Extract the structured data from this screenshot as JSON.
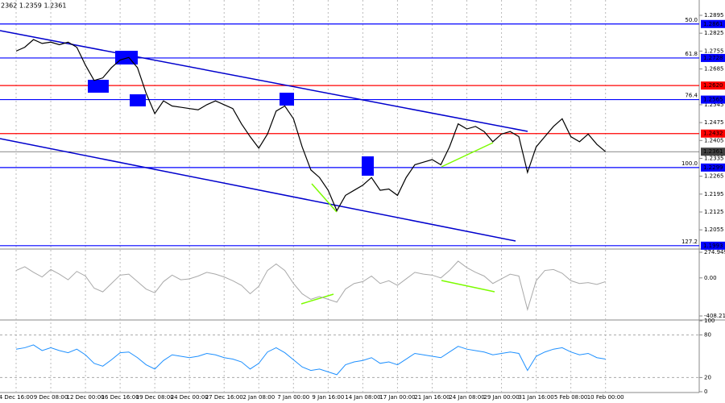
{
  "chart_data": [
    {
      "type": "line",
      "header": "2362 1.2359 1.2361",
      "categories": [
        "4 Dec 16:00",
        null,
        null,
        null,
        "9 Dec 08:00",
        null,
        null,
        null,
        "12 Dec 00:00",
        null,
        null,
        null,
        "16 Dec 16:00",
        null,
        null,
        null,
        "19 Dec 08:00",
        null,
        null,
        null,
        "24 Dec 00:00",
        null,
        null,
        null,
        "27 Dec 16:00",
        null,
        null,
        null,
        "2 Jan 08:00",
        null,
        null,
        null,
        "7 Jan 00:00",
        null,
        null,
        null,
        "9 Jan 16:00",
        null,
        null,
        null,
        "14 Jan 08:00",
        null,
        null,
        null,
        "17 Jan 00:00",
        null,
        null,
        null,
        "21 Jan 16:00",
        null,
        null,
        null,
        "24 Jan 08:00",
        null,
        null,
        null,
        "29 Jan 00:00",
        null,
        null,
        null,
        "31 Jan 16:00",
        null,
        null,
        null,
        "5 Feb 08:00",
        null,
        null,
        null,
        "10 Feb 00:00"
      ],
      "series": [
        {
          "color": "#000000",
          "values": [
            1.2755,
            1.277,
            1.28,
            1.2785,
            1.279,
            1.278,
            1.279,
            1.277,
            1.27,
            1.264,
            1.265,
            1.269,
            1.272,
            1.273,
            1.269,
            1.259,
            1.251,
            1.256,
            1.254,
            1.2535,
            1.253,
            1.2525,
            1.2545,
            1.256,
            1.2545,
            1.253,
            1.247,
            1.242,
            1.2375,
            1.243,
            1.252,
            1.254,
            1.249,
            1.238,
            1.229,
            1.226,
            1.221,
            1.213,
            1.219,
            1.221,
            1.223,
            1.226,
            1.221,
            1.2215,
            1.219,
            1.226,
            1.231,
            1.232,
            1.233,
            1.231,
            1.238,
            1.247,
            1.245,
            1.246,
            1.244,
            1.24,
            1.243,
            1.244,
            1.242,
            1.228,
            1.238,
            1.242,
            1.246,
            1.249,
            1.242,
            1.24,
            1.243,
            1.239,
            1.2361
          ]
        }
      ],
      "ylim": [
        1.1983,
        1.2955
      ],
      "yticks": [
        1.2895,
        1.2825,
        1.2755,
        1.2685,
        1.2545,
        1.2475,
        1.2405,
        1.2335,
        1.2265,
        1.2195,
        1.2125,
        1.2055
      ],
      "levels": [
        {
          "value": 1.2861,
          "color": "#0000ff",
          "fib": "50.0"
        },
        {
          "value": 1.2728,
          "color": "#0000ff",
          "fib": "61.8"
        },
        {
          "value": 1.262,
          "label": "1.2620",
          "color": "#ff0000"
        },
        {
          "value": 1.2565,
          "color": "#0000ff",
          "fib": "76.4"
        },
        {
          "value": 1.2432,
          "color": "#ff0000"
        },
        {
          "value": 1.2361,
          "color": "#404040"
        },
        {
          "value": 1.2299,
          "color": "#0000ff",
          "fib": "100.0"
        },
        {
          "value": 1.1993,
          "color": "#0000ff",
          "fib": "127.2"
        }
      ]
    },
    {
      "type": "line",
      "series": [
        {
          "color": "#a9a9a9",
          "values": [
            80,
            120,
            60,
            10,
            90,
            40,
            -20,
            70,
            20,
            -110,
            -150,
            -60,
            30,
            40,
            -40,
            -120,
            -160,
            -40,
            30,
            -20,
            -10,
            20,
            60,
            40,
            10,
            -30,
            -80,
            -170,
            -90,
            80,
            150,
            80,
            -60,
            -170,
            -230,
            -200,
            -230,
            -260,
            -120,
            -60,
            -40,
            20,
            -60,
            -30,
            -80,
            -10,
            60,
            40,
            30,
            0,
            80,
            180,
            110,
            60,
            20,
            -60,
            -10,
            40,
            20,
            -340,
            -30,
            80,
            90,
            50,
            -30,
            -60,
            -50,
            -70,
            -40
          ]
        }
      ],
      "ylim": [
        -442.8,
        300.9
      ],
      "yticks": [
        274.9492,
        {
          "value": 0,
          "label": "0.00"
        },
        -408.211
      ]
    },
    {
      "type": "line",
      "series": [
        {
          "color": "#1e90ff",
          "values": [
            60,
            62,
            66,
            58,
            62,
            58,
            55,
            60,
            52,
            40,
            36,
            45,
            55,
            56,
            48,
            38,
            32,
            44,
            52,
            50,
            48,
            50,
            54,
            52,
            48,
            46,
            42,
            32,
            40,
            56,
            62,
            55,
            45,
            35,
            30,
            32,
            28,
            24,
            38,
            42,
            44,
            48,
            40,
            42,
            38,
            46,
            54,
            52,
            50,
            48,
            56,
            64,
            60,
            58,
            56,
            52,
            54,
            56,
            54,
            30,
            50,
            56,
            60,
            62,
            56,
            52,
            54,
            48,
            46
          ]
        }
      ],
      "ylim": [
        0,
        100
      ],
      "yticks": [
        100,
        80,
        20,
        0
      ],
      "levels": [
        {
          "value": 80
        },
        {
          "value": 20
        }
      ]
    }
  ]
}
